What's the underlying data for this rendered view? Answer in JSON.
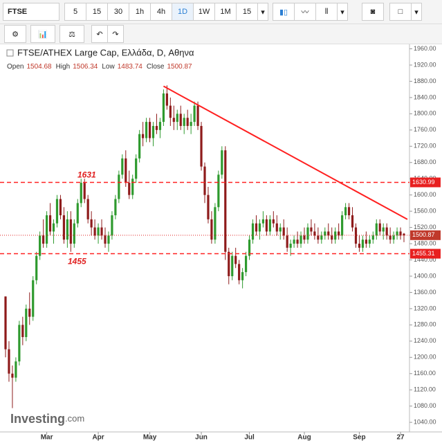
{
  "toolbar": {
    "symbol": "FTSE",
    "intervals": [
      "5",
      "15",
      "30",
      "1h",
      "4h",
      "1D",
      "1W",
      "1M",
      "15"
    ]
  },
  "logo": {
    "brand": "Investing",
    "suffix": ".com"
  },
  "chart_data": {
    "type": "candlestick",
    "title": "FTSE/ATHEX Large Cap, Ελλάδα, D, Αθηνα",
    "info": [
      {
        "label": "Open",
        "value": 1504.68
      },
      {
        "label": "High",
        "value": 1506.34
      },
      {
        "label": "Low",
        "value": 1483.74
      },
      {
        "label": "Close",
        "value": 1500.87
      }
    ],
    "categories": [
      null,
      null,
      null,
      null,
      null,
      null,
      null,
      null,
      null,
      null,
      null,
      null,
      "Mar",
      null,
      null,
      null,
      null,
      null,
      null,
      null,
      null,
      null,
      null,
      null,
      null,
      null,
      null,
      "Apr",
      null,
      null,
      null,
      null,
      null,
      null,
      null,
      null,
      null,
      null,
      null,
      null,
      null,
      null,
      "May",
      null,
      null,
      null,
      null,
      null,
      null,
      null,
      null,
      null,
      null,
      null,
      null,
      null,
      null,
      "Jun",
      null,
      null,
      null,
      null,
      null,
      null,
      null,
      null,
      null,
      null,
      null,
      null,
      null,
      "Jul",
      null,
      null,
      null,
      null,
      null,
      null,
      null,
      null,
      null,
      null,
      null,
      null,
      null,
      null,
      null,
      "Aug",
      null,
      null,
      null,
      null,
      null,
      null,
      null,
      null,
      null,
      null,
      null,
      null,
      null,
      null,
      null,
      "Sep",
      null,
      null,
      null,
      null,
      null,
      null,
      null,
      null,
      null,
      null,
      null,
      "27",
      null
    ],
    "candles": [
      [
        1350,
        1350,
        1200,
        1220
      ],
      [
        1220,
        1240,
        1140,
        1160
      ],
      [
        1160,
        1180,
        1075,
        1150
      ],
      [
        1150,
        1200,
        1140,
        1190
      ],
      [
        1190,
        1290,
        1180,
        1280
      ],
      [
        1280,
        1300,
        1230,
        1250
      ],
      [
        1250,
        1330,
        1240,
        1320
      ],
      [
        1320,
        1360,
        1280,
        1300
      ],
      [
        1300,
        1400,
        1290,
        1390
      ],
      [
        1390,
        1460,
        1380,
        1450
      ],
      [
        1450,
        1510,
        1440,
        1500
      ],
      [
        1500,
        1540,
        1470,
        1480
      ],
      [
        1480,
        1560,
        1470,
        1550
      ],
      [
        1550,
        1580,
        1500,
        1510
      ],
      [
        1510,
        1540,
        1480,
        1530
      ],
      [
        1530,
        1600,
        1520,
        1590
      ],
      [
        1590,
        1600,
        1540,
        1550
      ],
      [
        1550,
        1570,
        1480,
        1490
      ],
      [
        1490,
        1560,
        1470,
        1540
      ],
      [
        1540,
        1560,
        1460,
        1480
      ],
      [
        1480,
        1540,
        1470,
        1530
      ],
      [
        1530,
        1590,
        1520,
        1580
      ],
      [
        1580,
        1640,
        1570,
        1630
      ],
      [
        1630,
        1640,
        1580,
        1590
      ],
      [
        1590,
        1600,
        1530,
        1540
      ],
      [
        1540,
        1560,
        1500,
        1520
      ],
      [
        1520,
        1540,
        1490,
        1500
      ],
      [
        1500,
        1530,
        1480,
        1520
      ],
      [
        1520,
        1540,
        1490,
        1500
      ],
      [
        1500,
        1520,
        1470,
        1480
      ],
      [
        1480,
        1510,
        1460,
        1500
      ],
      [
        1500,
        1560,
        1490,
        1550
      ],
      [
        1550,
        1600,
        1540,
        1590
      ],
      [
        1590,
        1660,
        1580,
        1650
      ],
      [
        1650,
        1700,
        1640,
        1690
      ],
      [
        1690,
        1710,
        1620,
        1630
      ],
      [
        1630,
        1660,
        1590,
        1600
      ],
      [
        1600,
        1650,
        1590,
        1640
      ],
      [
        1640,
        1700,
        1630,
        1690
      ],
      [
        1690,
        1760,
        1680,
        1750
      ],
      [
        1750,
        1780,
        1720,
        1740
      ],
      [
        1740,
        1790,
        1730,
        1780
      ],
      [
        1780,
        1790,
        1730,
        1740
      ],
      [
        1740,
        1780,
        1720,
        1770
      ],
      [
        1770,
        1800,
        1750,
        1760
      ],
      [
        1760,
        1790,
        1740,
        1780
      ],
      [
        1780,
        1860,
        1770,
        1850
      ],
      [
        1850,
        1870,
        1810,
        1820
      ],
      [
        1820,
        1840,
        1770,
        1790
      ],
      [
        1790,
        1820,
        1760,
        1780
      ],
      [
        1780,
        1810,
        1760,
        1800
      ],
      [
        1800,
        1820,
        1760,
        1770
      ],
      [
        1770,
        1800,
        1750,
        1790
      ],
      [
        1790,
        1810,
        1760,
        1770
      ],
      [
        1770,
        1800,
        1750,
        1780
      ],
      [
        1780,
        1830,
        1770,
        1820
      ],
      [
        1820,
        1830,
        1760,
        1770
      ],
      [
        1770,
        1780,
        1660,
        1670
      ],
      [
        1670,
        1680,
        1580,
        1600
      ],
      [
        1600,
        1620,
        1530,
        1540
      ],
      [
        1540,
        1560,
        1480,
        1490
      ],
      [
        1490,
        1580,
        1480,
        1570
      ],
      [
        1570,
        1660,
        1560,
        1650
      ],
      [
        1650,
        1720,
        1640,
        1710
      ],
      [
        1710,
        1720,
        1440,
        1460
      ],
      [
        1460,
        1470,
        1380,
        1400
      ],
      [
        1400,
        1460,
        1390,
        1450
      ],
      [
        1450,
        1470,
        1420,
        1430
      ],
      [
        1430,
        1440,
        1380,
        1390
      ],
      [
        1390,
        1420,
        1370,
        1410
      ],
      [
        1410,
        1460,
        1400,
        1450
      ],
      [
        1450,
        1500,
        1440,
        1490
      ],
      [
        1490,
        1540,
        1480,
        1530
      ],
      [
        1530,
        1550,
        1500,
        1510
      ],
      [
        1510,
        1540,
        1490,
        1530
      ],
      [
        1530,
        1560,
        1520,
        1540
      ],
      [
        1540,
        1550,
        1500,
        1510
      ],
      [
        1510,
        1550,
        1500,
        1540
      ],
      [
        1540,
        1560,
        1520,
        1530
      ],
      [
        1530,
        1550,
        1500,
        1510
      ],
      [
        1510,
        1530,
        1490,
        1520
      ],
      [
        1520,
        1540,
        1490,
        1500
      ],
      [
        1500,
        1520,
        1460,
        1470
      ],
      [
        1470,
        1490,
        1450,
        1480
      ],
      [
        1480,
        1500,
        1470,
        1490
      ],
      [
        1490,
        1510,
        1470,
        1480
      ],
      [
        1480,
        1510,
        1470,
        1500
      ],
      [
        1500,
        1520,
        1480,
        1490
      ],
      [
        1490,
        1530,
        1480,
        1520
      ],
      [
        1520,
        1540,
        1500,
        1510
      ],
      [
        1510,
        1530,
        1490,
        1500
      ],
      [
        1500,
        1520,
        1480,
        1490
      ],
      [
        1490,
        1510,
        1480,
        1500
      ],
      [
        1500,
        1520,
        1490,
        1510
      ],
      [
        1510,
        1530,
        1490,
        1500
      ],
      [
        1500,
        1520,
        1480,
        1490
      ],
      [
        1490,
        1520,
        1480,
        1510
      ],
      [
        1510,
        1530,
        1490,
        1500
      ],
      [
        1500,
        1560,
        1490,
        1550
      ],
      [
        1550,
        1580,
        1540,
        1570
      ],
      [
        1570,
        1580,
        1540,
        1550
      ],
      [
        1550,
        1570,
        1510,
        1520
      ],
      [
        1520,
        1530,
        1470,
        1480
      ],
      [
        1480,
        1500,
        1460,
        1470
      ],
      [
        1470,
        1500,
        1460,
        1490
      ],
      [
        1490,
        1510,
        1470,
        1480
      ],
      [
        1480,
        1500,
        1470,
        1490
      ],
      [
        1490,
        1510,
        1480,
        1500
      ],
      [
        1500,
        1540,
        1490,
        1530
      ],
      [
        1530,
        1540,
        1500,
        1510
      ],
      [
        1510,
        1530,
        1490,
        1520
      ],
      [
        1520,
        1530,
        1490,
        1500
      ],
      [
        1500,
        1520,
        1480,
        1490
      ],
      [
        1490,
        1510,
        1480,
        1500
      ],
      [
        1500,
        1520,
        1490,
        1510
      ],
      [
        1510,
        1520,
        1490,
        1500
      ],
      [
        1504.68,
        1506.34,
        1483.74,
        1500.87
      ]
    ],
    "up_color": "#2e9a2e",
    "down_color": "#8e1b1b",
    "levels": [
      {
        "value": 1630.99,
        "label": "1631"
      },
      {
        "value": 1455.31,
        "label": "1455"
      }
    ],
    "price_line": 1500.87,
    "trendline": {
      "from": [
        46,
        1868
      ],
      "to": [
        117,
        1540
      ]
    },
    "ylim": [
      1030,
      1966
    ],
    "yticks": [
      {
        "value": 1040,
        "label": "1040.00"
      },
      {
        "value": 1080,
        "label": "1080.00"
      },
      {
        "value": 1120,
        "label": "1120.00"
      },
      {
        "value": 1160,
        "label": "1160.00"
      },
      {
        "value": 1200,
        "label": "1200.00"
      },
      {
        "value": 1240,
        "label": "1240.00"
      },
      {
        "value": 1280,
        "label": "1280.00"
      },
      {
        "value": 1320,
        "label": "1320.00"
      },
      {
        "value": 1360,
        "label": "1360.00"
      },
      {
        "value": 1400,
        "label": "1400.00"
      },
      {
        "value": 1440,
        "label": "1440.00"
      },
      {
        "value": 1480,
        "label": "1480.00"
      },
      {
        "value": 1520,
        "label": "1520.00"
      },
      {
        "value": 1560,
        "label": "1560.00"
      },
      {
        "value": 1600,
        "label": "1600.00"
      },
      {
        "value": 1640,
        "label": "1640.00"
      },
      {
        "value": 1680,
        "label": "1680.00"
      },
      {
        "value": 1720,
        "label": "1720.00"
      },
      {
        "value": 1760,
        "label": "1760.00"
      },
      {
        "value": 1800,
        "label": "1800.00"
      },
      {
        "value": 1840,
        "label": "1840.00"
      },
      {
        "value": 1880,
        "label": "1880.00"
      },
      {
        "value": 1920,
        "label": "1920.00"
      },
      {
        "value": 1960,
        "label": "1960.00"
      }
    ]
  }
}
